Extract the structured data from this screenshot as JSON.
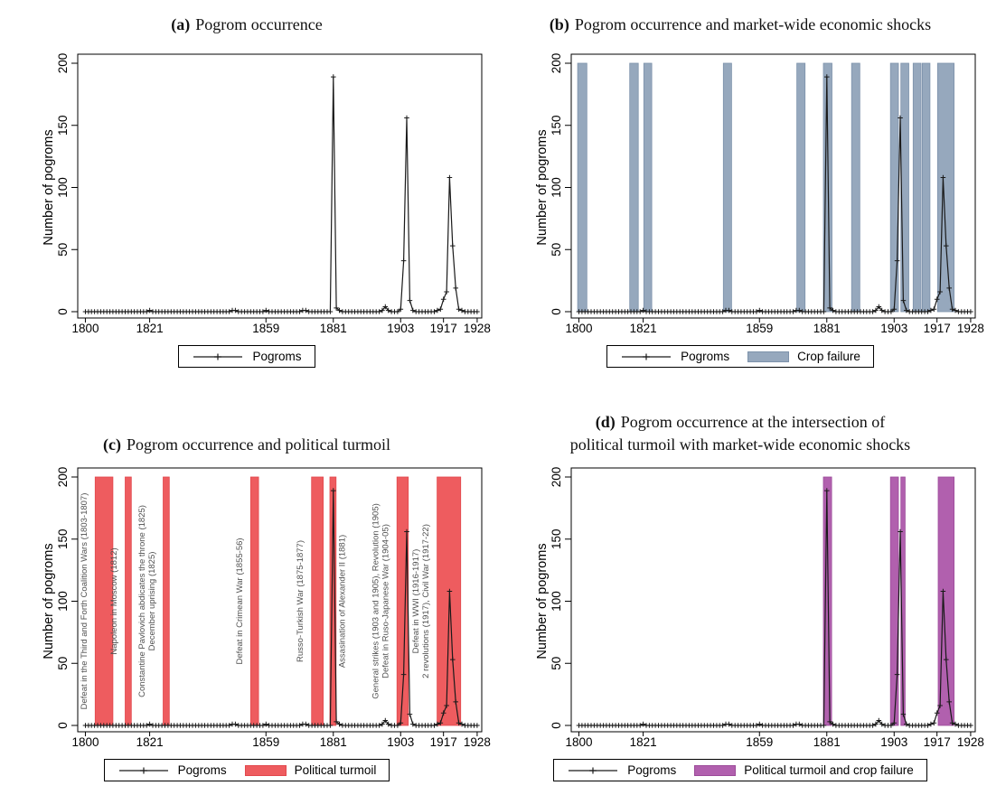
{
  "colors": {
    "pogrom_line": "#1a1a1a",
    "axis_text": "#000000",
    "event_label": "#4f4f4f"
  },
  "chart_data": {
    "type": "line",
    "ylabel": "Number of pogroms",
    "yticks": [
      0,
      50,
      100,
      150,
      200
    ],
    "xticks": [
      1800,
      1821,
      1859,
      1881,
      1903,
      1917,
      1928
    ],
    "xlim": [
      1797.5,
      1929.5
    ],
    "ylim": [
      0,
      200
    ],
    "pogroms_series": {
      "label": "Pogroms",
      "year_start": 1800,
      "year_end": 1928,
      "nonzero_points": {
        "1821": 1,
        "1848": 1,
        "1849": 1,
        "1859": 1,
        "1871": 1,
        "1872": 1,
        "1881": 189,
        "1882": 3,
        "1883": 1,
        "1897": 1,
        "1898": 4,
        "1899": 1,
        "1903": 2,
        "1904": 41,
        "1905": 156,
        "1906": 9,
        "1907": 1,
        "1915": 1,
        "1916": 2,
        "1917": 10,
        "1918": 16,
        "1919": 108,
        "1920": 53,
        "1921": 19,
        "1922": 2,
        "1923": 1
      }
    },
    "band_series": {
      "crop_failure": {
        "label": "Crop failure",
        "color": "#96a8bd",
        "border_color": "#7d92ab",
        "ranges": [
          [
            1799.6,
            1802.6
          ],
          [
            1816.6,
            1819.4
          ],
          [
            1821.2,
            1823.8
          ],
          [
            1847.2,
            1849.9
          ],
          [
            1871.2,
            1873.9
          ],
          [
            1879.9,
            1882.7
          ],
          [
            1889.1,
            1891.8
          ],
          [
            1901.8,
            1904.4
          ],
          [
            1905.2,
            1907.8
          ],
          [
            1909.2,
            1911.8
          ],
          [
            1912.2,
            1914.7
          ],
          [
            1917.2,
            1922.6
          ]
        ]
      },
      "political_turmoil": {
        "label": "Political turmoil",
        "color": "#ee5c5f",
        "border_color": "#e2484d",
        "events": [
          {
            "start": 1803.2,
            "end": 1809.0,
            "side": "left",
            "lines": [
              "Defeat in the Third and Forth Coalition Wars (1803-1807)"
            ]
          },
          {
            "start": 1813.0,
            "end": 1815.0,
            "side": "left",
            "lines": [
              "Napoleon in Moscow (1812)"
            ]
          },
          {
            "start": 1825.4,
            "end": 1827.4,
            "side": "left",
            "lines": [
              "Constantine Pavlovich abdicates the throne (1825)",
              "December uprising (1825)"
            ]
          },
          {
            "start": 1854.0,
            "end": 1856.6,
            "side": "left",
            "lines": [
              "Defeat in Crimean War (1855-56)"
            ]
          },
          {
            "start": 1873.9,
            "end": 1877.7,
            "side": "left",
            "lines": [
              "Russo-Turkish War (1875-1877)"
            ]
          },
          {
            "start": 1879.9,
            "end": 1881.9,
            "side": "right",
            "lines": [
              "Assasination of Alexander II (1881)"
            ]
          },
          {
            "start": 1901.8,
            "end": 1905.5,
            "side": "left",
            "lines": [
              "General strikes (1903 and 1905), Revolution (1905)",
              "Defeat in Ruso-Japanese War (1904-05)"
            ]
          },
          {
            "start": 1914.9,
            "end": 1922.6,
            "side": "left",
            "lines": [
              "Defeat in WWI (1916-1917)",
              "2 revolutions (1917), Civil War (1917-22)"
            ]
          }
        ]
      },
      "turmoil_and_crop": {
        "label": "Political turmoil and crop failure",
        "color": "#b160ae",
        "border_color": "#9c4b99",
        "ranges": [
          [
            1879.9,
            1882.6
          ],
          [
            1901.8,
            1904.4
          ],
          [
            1905.2,
            1906.6
          ],
          [
            1917.4,
            1922.6
          ]
        ]
      }
    },
    "panels": [
      {
        "key": "a",
        "title_prefix": "(a)",
        "title_line1": "Pogrom occurrence",
        "title_line2": "",
        "bands": null,
        "legend": [
          "Pogroms"
        ]
      },
      {
        "key": "b",
        "title_prefix": "(b)",
        "title_line1": "Pogrom occurrence and market-wide economic shocks",
        "title_line2": "",
        "bands": "crop_failure",
        "legend": [
          "Pogroms",
          "Crop failure"
        ]
      },
      {
        "key": "c",
        "title_prefix": "(c)",
        "title_line1": "Pogrom occurrence and political turmoil",
        "title_line2": "",
        "bands": "political_turmoil",
        "legend": [
          "Pogroms",
          "Political turmoil"
        ]
      },
      {
        "key": "d",
        "title_prefix": "(d)",
        "title_line1": "Pogrom occurrence at the intersection of",
        "title_line2": "political turmoil with market-wide economic shocks",
        "bands": "turmoil_and_crop",
        "legend": [
          "Pogroms",
          "Political turmoil and crop failure"
        ]
      }
    ]
  }
}
